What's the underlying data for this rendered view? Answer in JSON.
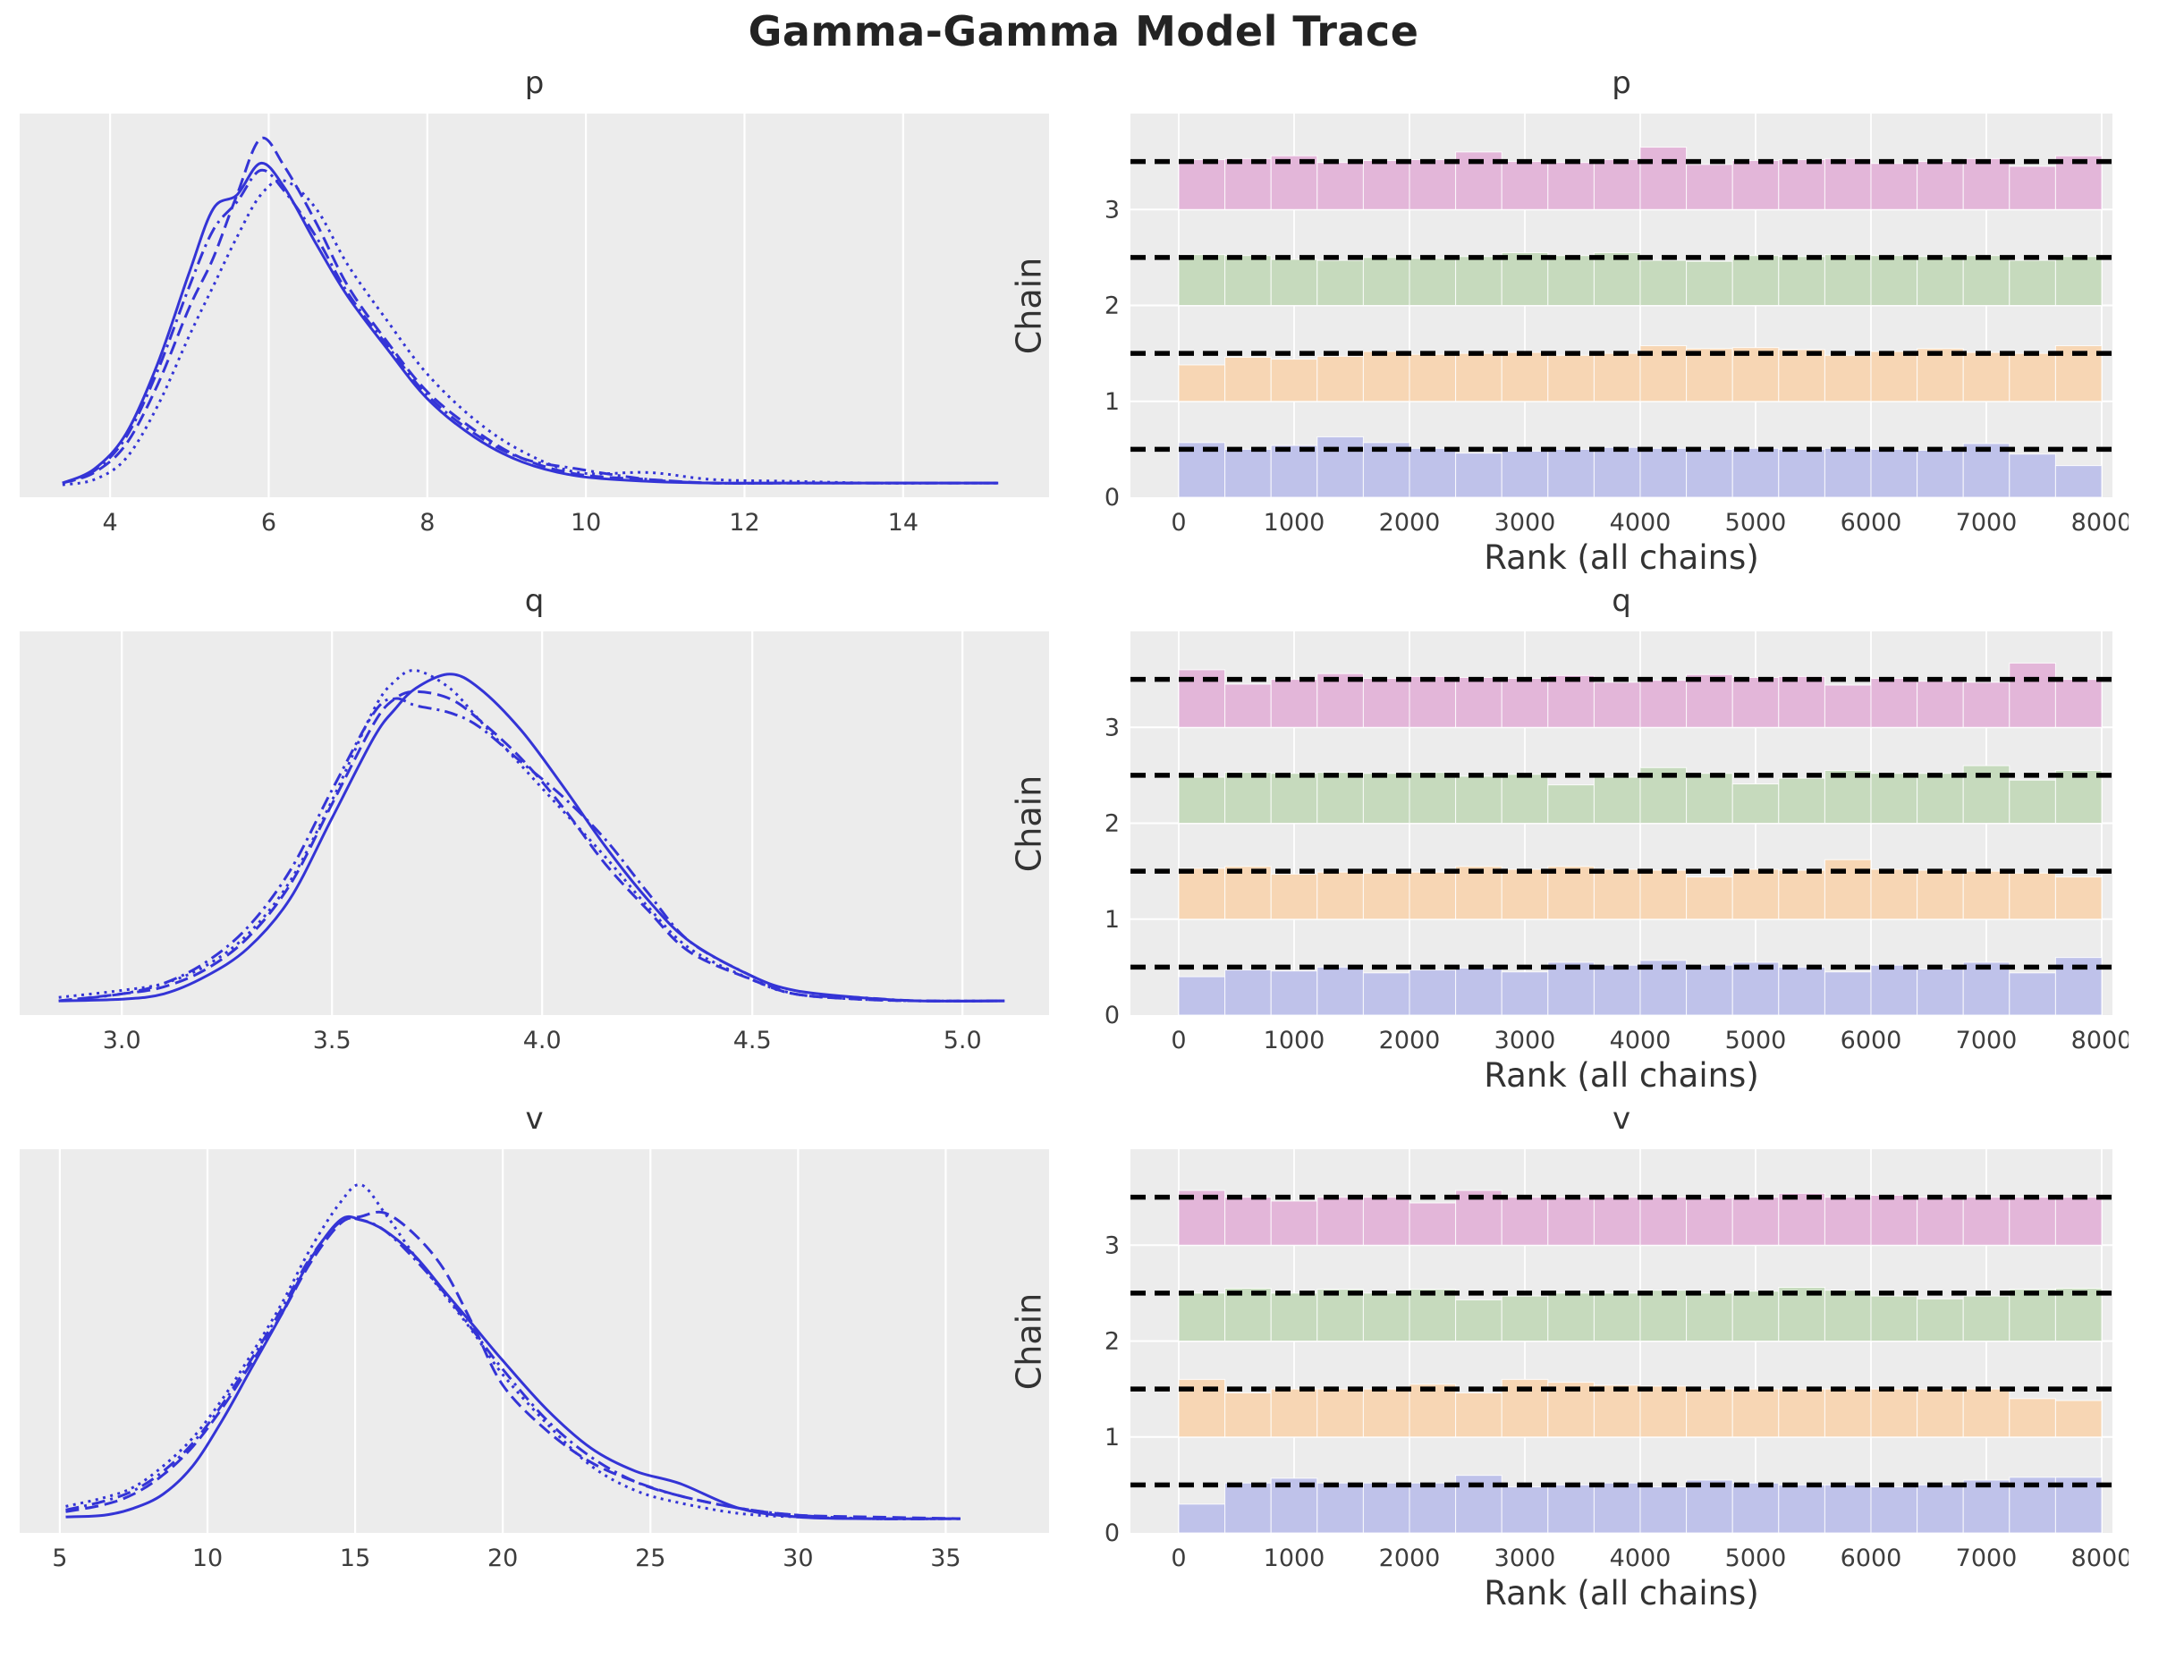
{
  "figure": {
    "title": "Gamma-Gamma Model Trace"
  },
  "style": {
    "axes_bg": "#ececec",
    "grid_color": "#ffffff",
    "tick_color": "#3d3d3d",
    "kde_color": "#3434d6",
    "ref_line_color": "#000000",
    "chain_colors": {
      "chain1": "#bfc2ea",
      "chain2": "#f7d6b4",
      "chain3": "#c6dabd",
      "chain4": "#e3b6d9"
    }
  },
  "labels": {
    "rank_xlabel": "Rank (all chains)",
    "rank_ylabel": "Chain"
  },
  "chart_data": [
    {
      "param": "p",
      "density": {
        "type": "line",
        "xlim": [
          2.86,
          15.84
        ],
        "xticks": [
          4,
          6,
          8,
          10,
          12,
          14
        ],
        "xtick_labels": [
          "4",
          "6",
          "8",
          "10",
          "12",
          "14"
        ],
        "x": [
          3.4,
          3.8,
          4.2,
          4.6,
          5.0,
          5.3,
          5.6,
          5.9,
          6.2,
          6.6,
          7.0,
          7.5,
          8.0,
          8.6,
          9.2,
          9.9,
          10.8,
          11.6,
          12.6,
          13.6,
          14.6,
          15.2
        ],
        "series": [
          {
            "name": "chain-1",
            "style": "solid",
            "y": [
              0.02,
              0.06,
              0.16,
              0.36,
              0.62,
              0.8,
              0.84,
              0.93,
              0.86,
              0.7,
              0.55,
              0.4,
              0.26,
              0.15,
              0.08,
              0.04,
              0.025,
              0.02,
              0.02,
              0.02,
              0.02,
              0.02
            ]
          },
          {
            "name": "chain-2",
            "style": "dashed",
            "y": [
              0.02,
              0.05,
              0.13,
              0.3,
              0.52,
              0.66,
              0.84,
              1.0,
              0.92,
              0.76,
              0.58,
              0.42,
              0.28,
              0.17,
              0.09,
              0.045,
              0.03,
              0.02,
              0.02,
              0.02,
              0.02,
              0.02
            ]
          },
          {
            "name": "chain-3",
            "style": "dotted",
            "y": [
              0.015,
              0.03,
              0.09,
              0.24,
              0.44,
              0.58,
              0.72,
              0.84,
              0.88,
              0.8,
              0.64,
              0.48,
              0.33,
              0.2,
              0.11,
              0.05,
              0.05,
              0.03,
              0.025,
              0.02,
              0.02,
              0.02
            ]
          },
          {
            "name": "chain-4",
            "style": "dashdot",
            "y": [
              0.02,
              0.055,
              0.15,
              0.34,
              0.58,
              0.74,
              0.82,
              0.91,
              0.85,
              0.72,
              0.56,
              0.41,
              0.27,
              0.16,
              0.09,
              0.06,
              0.03,
              0.02,
              0.02,
              0.02,
              0.02,
              0.02
            ]
          }
        ]
      },
      "rank": {
        "type": "bar",
        "xlim": [
          0,
          8000
        ],
        "xticks": [
          0,
          1000,
          2000,
          3000,
          4000,
          5000,
          6000,
          7000,
          8000
        ],
        "ylim": [
          0,
          4
        ],
        "yticks": [
          0,
          1,
          2,
          3
        ],
        "n_bins": 20,
        "ref_offset": 0.5,
        "chains": [
          {
            "name": "chain-1",
            "base": 0,
            "color_key": "chain1",
            "heights": [
              0.57,
              0.5,
              0.54,
              0.63,
              0.57,
              0.51,
              0.46,
              0.48,
              0.5,
              0.52,
              0.51,
              0.5,
              0.51,
              0.5,
              0.51,
              0.5,
              0.49,
              0.56,
              0.45,
              0.33
            ]
          },
          {
            "name": "chain-2",
            "base": 1,
            "color_key": "chain2",
            "heights": [
              0.38,
              0.46,
              0.44,
              0.47,
              0.52,
              0.49,
              0.5,
              0.51,
              0.48,
              0.5,
              0.58,
              0.55,
              0.56,
              0.54,
              0.48,
              0.52,
              0.55,
              0.51,
              0.5,
              0.58
            ]
          },
          {
            "name": "chain-3",
            "base": 2,
            "color_key": "chain3",
            "heights": [
              0.53,
              0.52,
              0.48,
              0.47,
              0.5,
              0.49,
              0.51,
              0.55,
              0.52,
              0.55,
              0.47,
              0.46,
              0.52,
              0.51,
              0.53,
              0.52,
              0.51,
              0.52,
              0.47,
              0.51
            ]
          },
          {
            "name": "chain-4",
            "base": 3,
            "color_key": "chain4",
            "heights": [
              0.52,
              0.53,
              0.56,
              0.49,
              0.51,
              0.52,
              0.6,
              0.5,
              0.49,
              0.52,
              0.65,
              0.47,
              0.51,
              0.52,
              0.53,
              0.48,
              0.5,
              0.53,
              0.45,
              0.56
            ]
          }
        ]
      }
    },
    {
      "param": "q",
      "density": {
        "type": "line",
        "xlim": [
          2.757,
          5.206
        ],
        "xticks": [
          3.0,
          3.5,
          4.0,
          4.5,
          5.0
        ],
        "xtick_labels": [
          "3.0",
          "3.5",
          "4.0",
          "4.5",
          "5.0"
        ],
        "x": [
          2.85,
          3.0,
          3.1,
          3.2,
          3.3,
          3.4,
          3.5,
          3.6,
          3.65,
          3.7,
          3.78,
          3.85,
          3.95,
          4.05,
          4.15,
          4.25,
          4.35,
          4.5,
          4.6,
          4.75,
          4.9,
          5.1
        ],
        "series": [
          {
            "name": "chain-1",
            "style": "solid",
            "y": [
              0.02,
              0.025,
              0.04,
              0.09,
              0.17,
              0.31,
              0.54,
              0.77,
              0.85,
              0.91,
              0.95,
              0.91,
              0.79,
              0.63,
              0.46,
              0.31,
              0.19,
              0.09,
              0.05,
              0.03,
              0.02,
              0.02
            ]
          },
          {
            "name": "chain-2",
            "style": "dashed",
            "y": [
              0.02,
              0.04,
              0.06,
              0.11,
              0.2,
              0.35,
              0.58,
              0.81,
              0.88,
              0.9,
              0.88,
              0.82,
              0.71,
              0.57,
              0.41,
              0.28,
              0.16,
              0.08,
              0.04,
              0.025,
              0.02,
              0.02
            ]
          },
          {
            "name": "chain-3",
            "style": "dotted",
            "y": [
              0.03,
              0.05,
              0.07,
              0.12,
              0.21,
              0.36,
              0.59,
              0.85,
              0.93,
              0.96,
              0.91,
              0.82,
              0.69,
              0.56,
              0.43,
              0.29,
              0.17,
              0.08,
              0.04,
              0.025,
              0.02,
              0.02
            ]
          },
          {
            "name": "chain-4",
            "style": "dashdot",
            "y": [
              0.02,
              0.04,
              0.07,
              0.13,
              0.23,
              0.39,
              0.62,
              0.84,
              0.88,
              0.86,
              0.84,
              0.8,
              0.7,
              0.6,
              0.48,
              0.33,
              0.19,
              0.09,
              0.04,
              0.03,
              0.02,
              0.02
            ]
          }
        ]
      },
      "rank": {
        "type": "bar",
        "xlim": [
          0,
          8000
        ],
        "xticks": [
          0,
          1000,
          2000,
          3000,
          4000,
          5000,
          6000,
          7000,
          8000
        ],
        "ylim": [
          0,
          4
        ],
        "yticks": [
          0,
          1,
          2,
          3
        ],
        "n_bins": 20,
        "ref_offset": 0.5,
        "chains": [
          {
            "name": "chain-1",
            "base": 0,
            "color_key": "chain1",
            "heights": [
              0.4,
              0.47,
              0.46,
              0.5,
              0.44,
              0.47,
              0.49,
              0.45,
              0.55,
              0.52,
              0.57,
              0.52,
              0.55,
              0.5,
              0.45,
              0.52,
              0.48,
              0.55,
              0.44,
              0.6
            ]
          },
          {
            "name": "chain-2",
            "base": 1,
            "color_key": "chain2",
            "heights": [
              0.53,
              0.55,
              0.47,
              0.49,
              0.48,
              0.49,
              0.55,
              0.52,
              0.55,
              0.52,
              0.51,
              0.44,
              0.52,
              0.51,
              0.62,
              0.52,
              0.51,
              0.5,
              0.48,
              0.44
            ]
          },
          {
            "name": "chain-3",
            "base": 2,
            "color_key": "chain3",
            "heights": [
              0.48,
              0.53,
              0.52,
              0.53,
              0.52,
              0.53,
              0.49,
              0.51,
              0.4,
              0.48,
              0.58,
              0.52,
              0.41,
              0.47,
              0.55,
              0.52,
              0.52,
              0.6,
              0.45,
              0.55
            ]
          },
          {
            "name": "chain-4",
            "base": 3,
            "color_key": "chain4",
            "heights": [
              0.6,
              0.45,
              0.5,
              0.56,
              0.51,
              0.53,
              0.52,
              0.51,
              0.54,
              0.47,
              0.49,
              0.55,
              0.52,
              0.53,
              0.44,
              0.51,
              0.48,
              0.47,
              0.67,
              0.5
            ]
          }
        ]
      }
    },
    {
      "param": "v",
      "density": {
        "type": "line",
        "xlim": [
          3.64,
          38.5
        ],
        "xticks": [
          5,
          10,
          15,
          20,
          25,
          30,
          35
        ],
        "xtick_labels": [
          "5",
          "10",
          "15",
          "20",
          "25",
          "30",
          "35"
        ],
        "x": [
          5.2,
          6.5,
          7.5,
          8.5,
          9.5,
          10.5,
          11.5,
          12.5,
          13.5,
          14.5,
          15.2,
          16,
          17,
          18,
          19,
          20,
          21.5,
          23,
          24.5,
          26,
          28,
          30,
          32.5,
          35.5
        ],
        "series": [
          {
            "name": "chain-1",
            "style": "solid",
            "y": [
              0.025,
              0.03,
              0.05,
              0.09,
              0.17,
              0.3,
              0.45,
              0.6,
              0.76,
              0.87,
              0.87,
              0.84,
              0.77,
              0.67,
              0.57,
              0.47,
              0.33,
              0.22,
              0.155,
              0.12,
              0.05,
              0.025,
              0.02,
              0.02
            ]
          },
          {
            "name": "chain-2",
            "style": "dashed",
            "y": [
              0.04,
              0.06,
              0.09,
              0.145,
              0.225,
              0.335,
              0.465,
              0.6,
              0.75,
              0.86,
              0.88,
              0.89,
              0.83,
              0.73,
              0.57,
              0.4,
              0.27,
              0.18,
              0.125,
              0.085,
              0.05,
              0.03,
              0.025,
              0.02
            ]
          },
          {
            "name": "chain-3",
            "style": "dotted",
            "y": [
              0.055,
              0.08,
              0.11,
              0.17,
              0.25,
              0.36,
              0.49,
              0.63,
              0.79,
              0.92,
              0.97,
              0.89,
              0.77,
              0.66,
              0.55,
              0.43,
              0.29,
              0.17,
              0.1,
              0.065,
              0.035,
              0.025,
              0.02,
              0.02
            ]
          },
          {
            "name": "chain-4",
            "style": "dashdot",
            "y": [
              0.045,
              0.07,
              0.1,
              0.155,
              0.235,
              0.345,
              0.475,
              0.615,
              0.765,
              0.865,
              0.87,
              0.84,
              0.76,
              0.665,
              0.555,
              0.445,
              0.3,
              0.195,
              0.125,
              0.085,
              0.05,
              0.03,
              0.02,
              0.02
            ]
          }
        ]
      },
      "rank": {
        "type": "bar",
        "xlim": [
          0,
          8000
        ],
        "xticks": [
          0,
          1000,
          2000,
          3000,
          4000,
          5000,
          6000,
          7000,
          8000
        ],
        "ylim": [
          0,
          4
        ],
        "yticks": [
          0,
          1,
          2,
          3
        ],
        "n_bins": 20,
        "ref_offset": 0.5,
        "chains": [
          {
            "name": "chain-1",
            "base": 0,
            "color_key": "chain1",
            "heights": [
              0.3,
              0.52,
              0.57,
              0.52,
              0.52,
              0.52,
              0.6,
              0.48,
              0.5,
              0.52,
              0.48,
              0.55,
              0.52,
              0.5,
              0.5,
              0.48,
              0.5,
              0.55,
              0.58,
              0.58
            ]
          },
          {
            "name": "chain-2",
            "base": 1,
            "color_key": "chain2",
            "heights": [
              0.6,
              0.46,
              0.5,
              0.5,
              0.5,
              0.55,
              0.46,
              0.6,
              0.57,
              0.54,
              0.53,
              0.5,
              0.5,
              0.5,
              0.5,
              0.5,
              0.5,
              0.5,
              0.4,
              0.38
            ]
          },
          {
            "name": "chain-3",
            "base": 2,
            "color_key": "chain3",
            "heights": [
              0.5,
              0.55,
              0.5,
              0.54,
              0.5,
              0.54,
              0.43,
              0.47,
              0.5,
              0.5,
              0.53,
              0.5,
              0.52,
              0.56,
              0.53,
              0.47,
              0.44,
              0.47,
              0.54,
              0.55
            ]
          },
          {
            "name": "chain-4",
            "base": 3,
            "color_key": "chain4",
            "heights": [
              0.57,
              0.5,
              0.46,
              0.5,
              0.5,
              0.44,
              0.57,
              0.5,
              0.5,
              0.5,
              0.5,
              0.49,
              0.5,
              0.54,
              0.5,
              0.52,
              0.5,
              0.5,
              0.5,
              0.5
            ]
          }
        ]
      }
    }
  ]
}
